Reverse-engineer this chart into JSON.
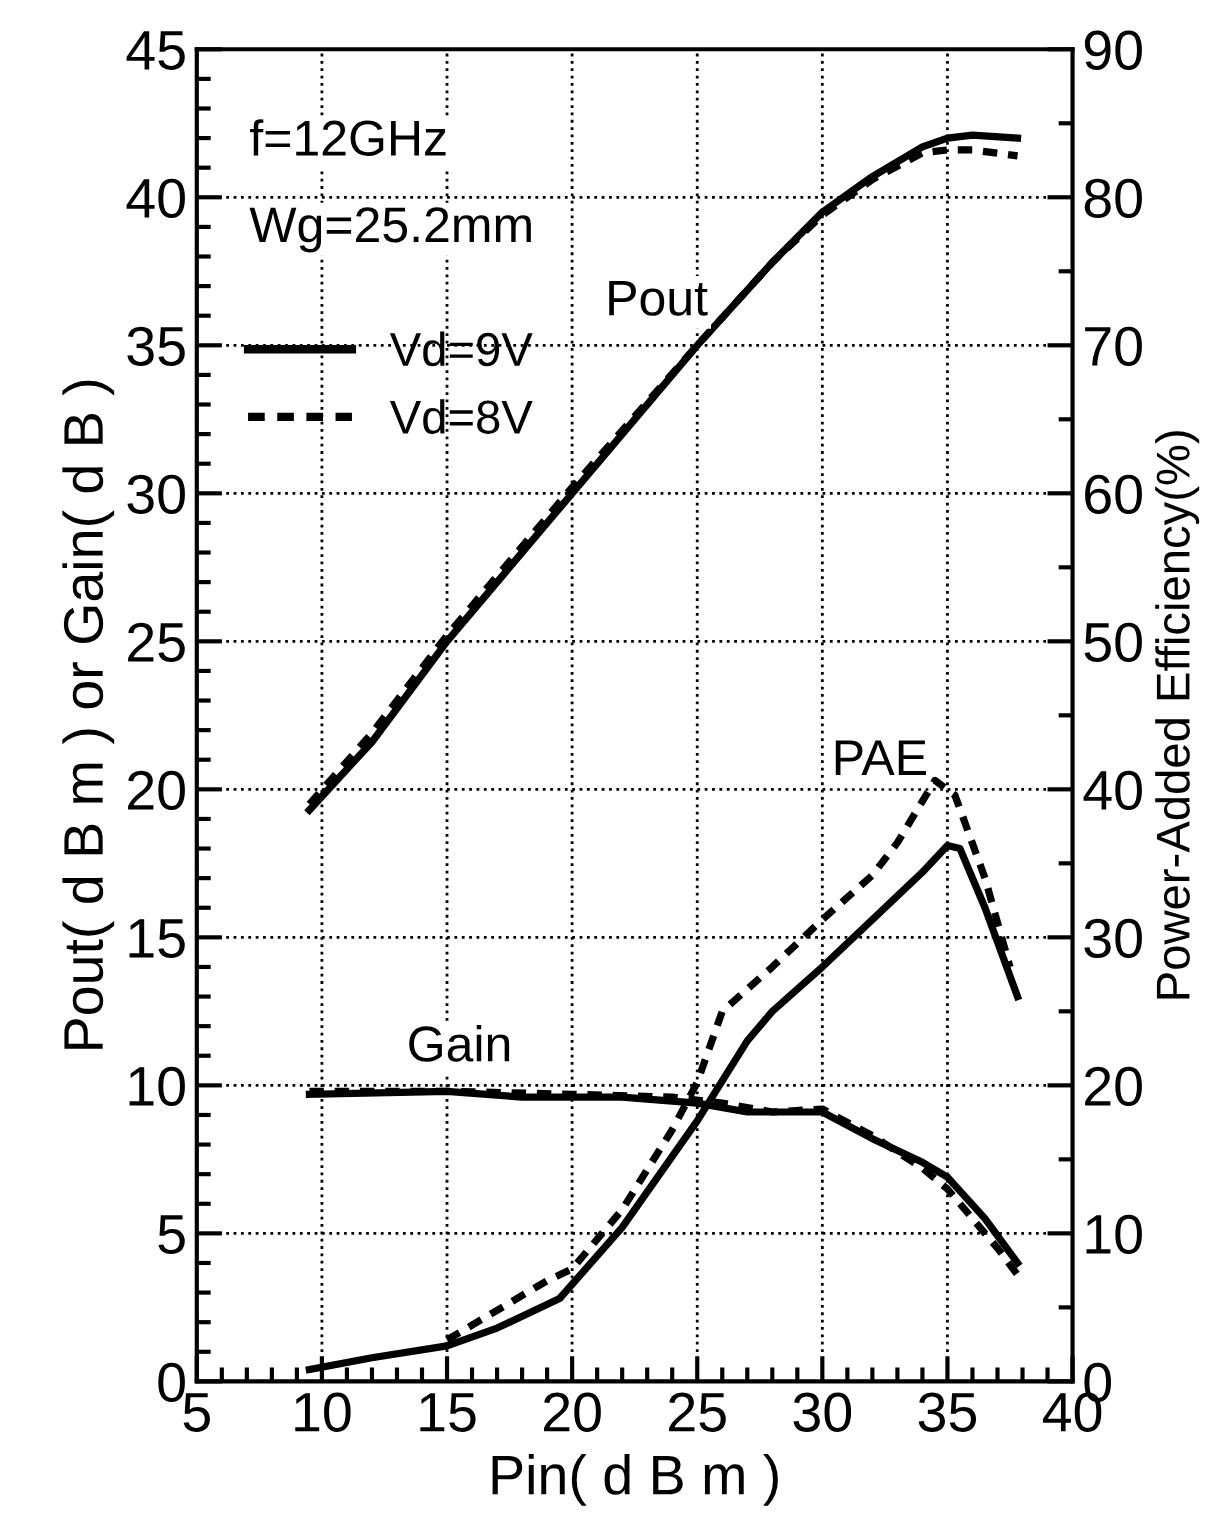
{
  "chart_data": {
    "type": "line",
    "xlabel": "Pin( d B m )",
    "ylabel": "Pout( d B m ) or Gain( d B )",
    "y2label": "Power-Added Efficiency(%)",
    "xlim": [
      5,
      40
    ],
    "xticks": [
      5,
      10,
      15,
      20,
      25,
      30,
      35,
      40
    ],
    "ylim": [
      0,
      45
    ],
    "yticks": [
      0,
      5,
      10,
      15,
      20,
      25,
      30,
      35,
      40,
      45
    ],
    "y2lim": [
      0,
      90
    ],
    "y2ticks": [
      0,
      10,
      20,
      30,
      40,
      50,
      60,
      70,
      80,
      90
    ],
    "grid": true,
    "legend": "top left",
    "marker": "none",
    "annotations": [
      "f=12GHz",
      "Wg=25.2mm",
      "Pout",
      "Gain",
      "PAE"
    ],
    "series": [
      {
        "name": "Vd=9V",
        "color": "#000000",
        "line_style": "solid",
        "x": [
          9.5,
          12,
          15,
          20,
          25,
          28,
          30,
          32,
          34,
          35,
          36,
          37.8
        ],
        "values": [
          19.3,
          21.6,
          25,
          30,
          35,
          37.8,
          39.5,
          40.7,
          41.7,
          42.0,
          42.1,
          42.0
        ]
      },
      {
        "name": "Vd=8V",
        "color": "#000000",
        "line_style": "dotted",
        "x": [
          9.5,
          12,
          15,
          20,
          25,
          28,
          30,
          32,
          34,
          35,
          36,
          37.8
        ],
        "values": [
          19.5,
          21.9,
          25.2,
          30.2,
          35,
          37.8,
          39.4,
          40.6,
          41.5,
          41.6,
          41.6,
          41.4
        ]
      },
      {
        "color": "#000000",
        "line_style": "solid",
        "x": [
          9.5,
          15,
          18,
          22,
          25,
          27,
          30,
          32,
          34,
          35,
          36.5,
          37.8
        ],
        "values": [
          9.7,
          9.8,
          9.6,
          9.6,
          9.4,
          9.1,
          9.1,
          8.2,
          7.4,
          6.9,
          5.5,
          4.0
        ]
      },
      {
        "color": "#000000",
        "line_style": "dotted",
        "x": [
          9.5,
          15,
          20,
          24,
          26,
          28,
          30,
          32,
          34,
          35,
          37,
          37.8
        ],
        "values": [
          9.8,
          9.8,
          9.7,
          9.6,
          9.4,
          9.1,
          9.2,
          8.3,
          7.2,
          6.5,
          4.5,
          3.6
        ]
      },
      {
        "color": "#000000",
        "line_style": "solid",
        "axis": "y2",
        "x": [
          9.5,
          12,
          15,
          17,
          19.5,
          22,
          24,
          25,
          27,
          28,
          30,
          32,
          34,
          35,
          35.5,
          36.5,
          37.8
        ],
        "values": [
          0.8,
          1.6,
          2.4,
          3.6,
          5.6,
          10.4,
          15.2,
          17.6,
          23,
          25,
          28,
          31.2,
          34.4,
          36.2,
          36,
          32,
          26
        ]
      },
      {
        "color": "#000000",
        "line_style": "dotted",
        "axis": "y2",
        "x": [
          15,
          17,
          19,
          20,
          22,
          24,
          25,
          26,
          28,
          30,
          32,
          33,
          34.5,
          35.3,
          36.5,
          37.5
        ],
        "values": [
          2.8,
          4.8,
          6.8,
          7.6,
          11.6,
          17,
          20.2,
          25,
          28,
          31.2,
          34.2,
          36.4,
          40.6,
          39.6,
          34,
          28
        ]
      }
    ]
  }
}
